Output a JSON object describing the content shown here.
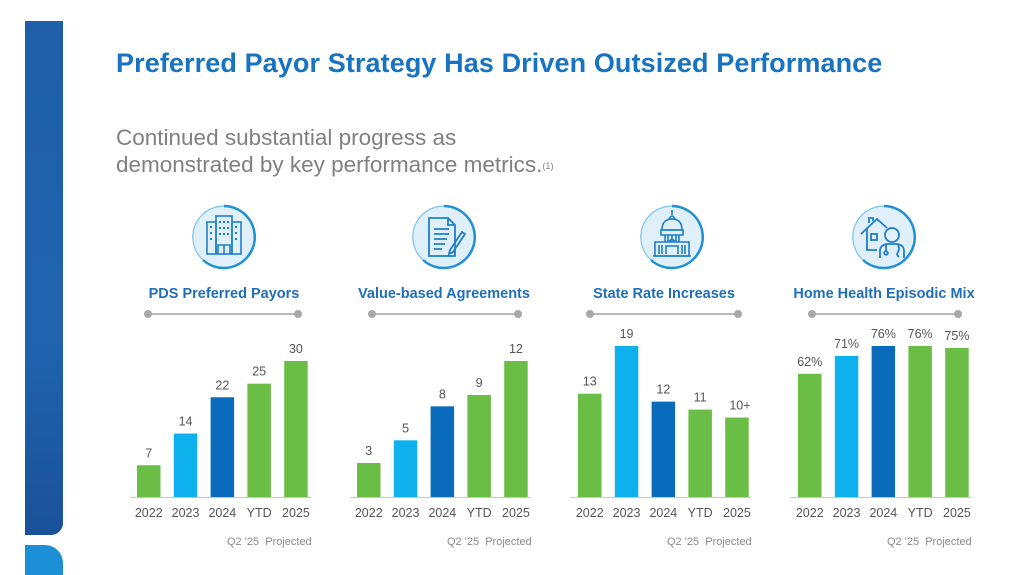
{
  "slide": {
    "title": "Preferred Payor Strategy Has Driven Outsized Performance",
    "subtitle_line1": "Continued substantial progress as",
    "subtitle_line2": "demonstrated by key performance metrics.",
    "subtitle_footnote_marker": "(1)"
  },
  "colors": {
    "title": "#1874c1",
    "green": "#6abd45",
    "light_blue": "#0fb0ee",
    "dark_blue": "#0a6bbd",
    "label": "#555555",
    "axis": "#c8c8c8"
  },
  "chart_data": [
    {
      "type": "bar",
      "title": "PDS Preferred Payors",
      "icon": "office-building-icon",
      "categories": [
        "2022",
        "2023",
        "2024",
        "YTD",
        "2025"
      ],
      "values": [
        7,
        14,
        22,
        25,
        30
      ],
      "value_labels": [
        "7",
        "14",
        "22",
        "25",
        "30"
      ],
      "bar_colors": [
        "green",
        "light_blue",
        "dark_blue",
        "green",
        "green"
      ],
      "footnote_left": "Q2 '25",
      "footnote_right": "Projected",
      "xlabel": "",
      "ylabel": "",
      "ylim": [
        0,
        30
      ],
      "grid": false
    },
    {
      "type": "bar",
      "title": "Value-based Agreements",
      "icon": "document-pen-icon",
      "categories": [
        "2022",
        "2023",
        "2024",
        "YTD",
        "2025"
      ],
      "values": [
        3,
        5,
        8,
        9,
        12
      ],
      "value_labels": [
        "3",
        "5",
        "8",
        "9",
        "12"
      ],
      "bar_colors": [
        "green",
        "light_blue",
        "dark_blue",
        "green",
        "green"
      ],
      "footnote_left": "Q2 '25",
      "footnote_right": "Projected",
      "xlabel": "",
      "ylabel": "",
      "ylim": [
        0,
        12
      ],
      "grid": false
    },
    {
      "type": "bar",
      "title": "State Rate Increases",
      "icon": "capitol-building-icon",
      "categories": [
        "2022",
        "2023",
        "2024",
        "YTD",
        "2025"
      ],
      "values": [
        13,
        19,
        12,
        11,
        10
      ],
      "value_labels": [
        "13",
        "19",
        "12",
        "11",
        "10+"
      ],
      "bar_colors": [
        "green",
        "light_blue",
        "dark_blue",
        "green",
        "green"
      ],
      "footnote_left": "Q2 '25",
      "footnote_right": "Projected",
      "xlabel": "",
      "ylabel": "",
      "ylim": [
        0,
        19
      ],
      "grid": false
    },
    {
      "type": "bar",
      "title": "Home Health Episodic Mix",
      "icon": "home-health-clinician-icon",
      "categories": [
        "2022",
        "2023",
        "2024",
        "YTD",
        "2025"
      ],
      "values": [
        62,
        71,
        76,
        76,
        75
      ],
      "value_labels": [
        "62%",
        "71%",
        "76%",
        "76%",
        "75%"
      ],
      "bar_colors": [
        "green",
        "light_blue",
        "dark_blue",
        "green",
        "green"
      ],
      "footnote_left": "Q2 '25",
      "footnote_right": "Projected",
      "xlabel": "",
      "ylabel": "",
      "ylim": [
        0,
        76
      ],
      "grid": false
    }
  ]
}
